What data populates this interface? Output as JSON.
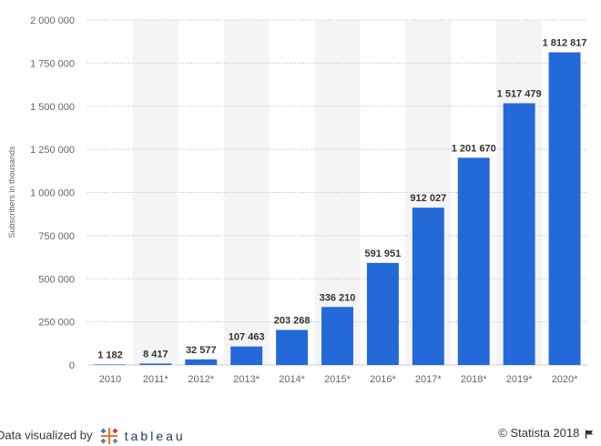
{
  "chart_data": {
    "type": "bar",
    "categories": [
      "2010",
      "2011*",
      "2012*",
      "2013*",
      "2014*",
      "2015*",
      "2016*",
      "2017*",
      "2018*",
      "2019*",
      "2020*"
    ],
    "values": [
      1182,
      8417,
      32577,
      107463,
      203268,
      336210,
      591951,
      912027,
      1201670,
      1517479,
      1812817
    ],
    "value_labels": [
      "1 182",
      "8 417",
      "32 577",
      "107 463",
      "203 268",
      "336 210",
      "591 951",
      "912 027",
      "1 201 670",
      "1 517 479",
      "1 812 817"
    ],
    "ylabel": "Subscribers in thousands",
    "xlabel": "",
    "ylim": [
      0,
      2000000
    ],
    "yticks": [
      0,
      250000,
      500000,
      750000,
      1000000,
      1250000,
      1500000,
      1750000,
      2000000
    ],
    "ytick_labels": [
      "0",
      "250 000",
      "500 000",
      "750 000",
      "1 000 000",
      "1 250 000",
      "1 500 000",
      "1 750 000",
      "2 000 000"
    ],
    "grid": true,
    "bar_color": "#2469d8",
    "band_color": "#f4f4f4"
  },
  "footer": {
    "credit_prefix": "Data visualized by",
    "credit_brand": "tableau",
    "copyright": "© Statista 2018",
    "brand_icon": "tableau-logo-icon",
    "flag_icon": "statista-flag-icon"
  }
}
